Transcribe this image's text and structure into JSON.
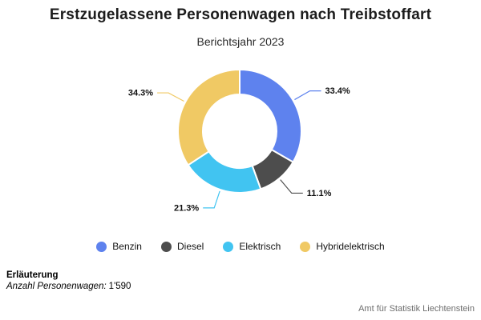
{
  "header": {
    "title": "Erstzugelassene Personenwagen nach Treibstoffart",
    "subtitle": "Berichtsjahr 2023"
  },
  "chart_data": {
    "type": "pie",
    "subtype": "donut",
    "title": "Erstzugelassene Personenwagen nach Treibstoffart",
    "subtitle": "Berichtsjahr 2023",
    "unit": "%",
    "start_angle_deg": 0,
    "direction": "clockwise",
    "labels_style": "outside-with-leader-lines",
    "legend_position": "bottom",
    "slices": [
      {
        "label": "Benzin",
        "value_pct": 33.4,
        "color": "#5e82ee"
      },
      {
        "label": "Diesel",
        "value_pct": 11.1,
        "color": "#4d4d4d"
      },
      {
        "label": "Elektrisch",
        "value_pct": 21.3,
        "color": "#41c4f1"
      },
      {
        "label": "Hybridelektrisch",
        "value_pct": 34.3,
        "color": "#f0c964"
      }
    ]
  },
  "footnote": {
    "heading": "Erläuterung",
    "note_label": "Anzahl Personenwagen:",
    "note_value": "1'590"
  },
  "source": "Amt für Statistik Liechtenstein"
}
